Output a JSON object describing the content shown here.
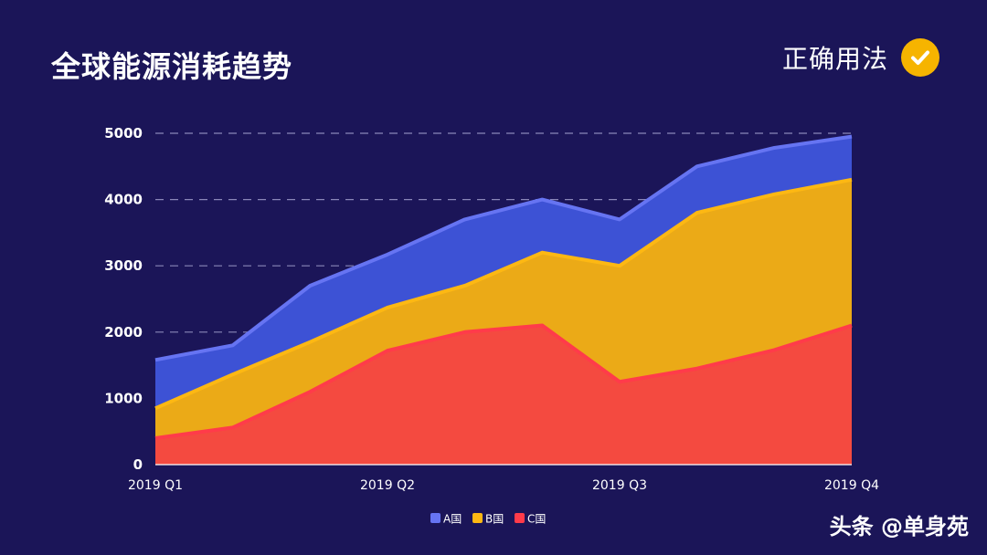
{
  "header": {
    "title": "全球能源消耗趋势",
    "badge_label": "正确用法",
    "badge_icon": "check-circle-icon",
    "badge_color": "#f6b400"
  },
  "watermark": "头条 @单身苑",
  "chart_data": {
    "type": "area",
    "stacked": true,
    "title": "全球能源消耗趋势",
    "xlabel": "",
    "ylabel": "",
    "ylim": [
      0,
      5000
    ],
    "yticks": [
      0,
      1000,
      2000,
      3000,
      4000,
      5000
    ],
    "x_tick_labels": [
      "2019 Q1",
      "2019 Q2",
      "2019 Q3",
      "2019 Q4"
    ],
    "points_per_quarter": 3,
    "grid": "horizontal-dashed",
    "legend": "bottom-center",
    "series": [
      {
        "name": "C国",
        "color": "#f44a40",
        "line_color": "#ff3b4a",
        "values": [
          400,
          560,
          1100,
          1720,
          2000,
          2100,
          1250,
          1450,
          1730,
          2100
        ]
      },
      {
        "name": "B国",
        "color": "#ebaa17",
        "line_color": "#fdb813",
        "values": [
          450,
          800,
          750,
          650,
          700,
          1100,
          1750,
          2350,
          2350,
          2200
        ]
      },
      {
        "name": "A国",
        "color": "#3d52d5",
        "line_color": "#6674f2",
        "values": [
          730,
          440,
          850,
          800,
          1000,
          800,
          700,
          700,
          700,
          650
        ]
      }
    ]
  }
}
